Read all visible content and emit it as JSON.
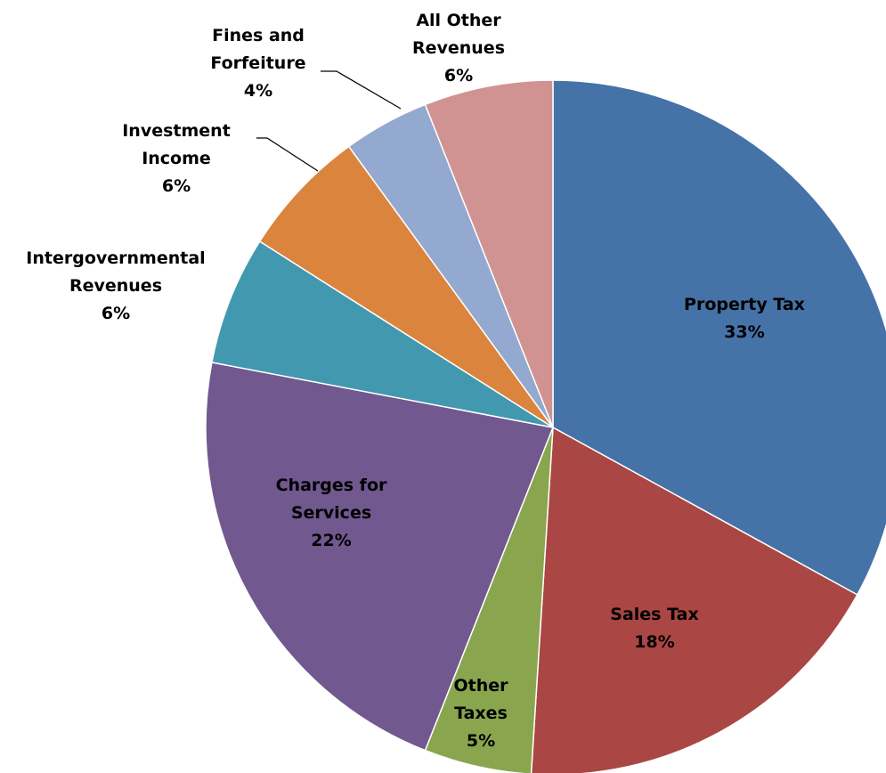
{
  "chart_data": {
    "type": "pie",
    "categories": [
      "Property Tax",
      "Sales Tax",
      "Other Taxes",
      "Charges for Services",
      "Intergovernmental Revenues",
      "Investment Income",
      "Fines and Forfeiture",
      "All Other Revenues"
    ],
    "values": [
      33,
      18,
      5,
      22,
      6,
      6,
      4,
      6
    ],
    "value_labels": [
      "33%",
      "18%",
      "5%",
      "22%",
      "6%",
      "6%",
      "4%",
      "6%"
    ],
    "colors": [
      "#4572a7",
      "#aa4643",
      "#89a54e",
      "#71588f",
      "#4198af",
      "#db843d",
      "#93a9cf",
      "#d09392"
    ]
  }
}
